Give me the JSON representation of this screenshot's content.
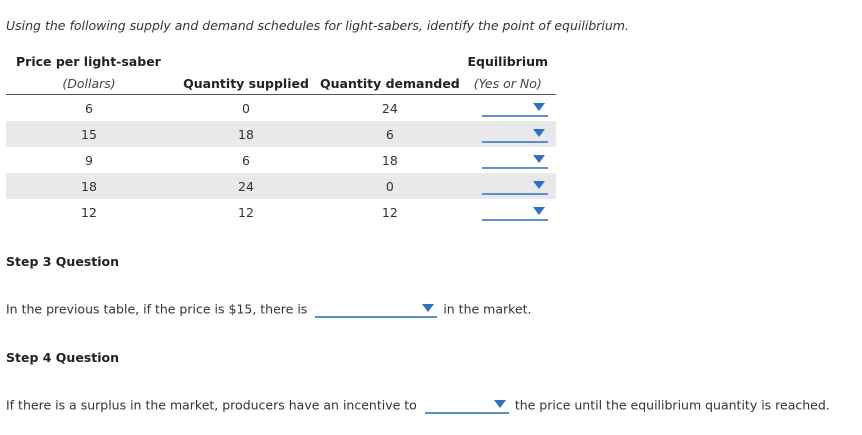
{
  "intro": "Using the following supply and demand schedules for light-sabers, identify the point of equilibrium.",
  "table": {
    "headers_top": {
      "price": "Price per light-saber",
      "equilibrium": "Equilibrium"
    },
    "headers_bottom": {
      "price_unit": "(Dollars)",
      "supplied": "Quantity supplied",
      "demanded": "Quantity demanded",
      "equilibrium_options": "(Yes or No)"
    },
    "rows": [
      {
        "price": "6",
        "supplied": "0",
        "demanded": "24",
        "equilibrium": ""
      },
      {
        "price": "15",
        "supplied": "18",
        "demanded": "6",
        "equilibrium": ""
      },
      {
        "price": "9",
        "supplied": "6",
        "demanded": "18",
        "equilibrium": ""
      },
      {
        "price": "18",
        "supplied": "24",
        "demanded": "0",
        "equilibrium": ""
      },
      {
        "price": "12",
        "supplied": "12",
        "demanded": "12",
        "equilibrium": ""
      }
    ]
  },
  "step3": {
    "title": "Step 3 Question",
    "before": "In the previous table, if the price is $15, there is",
    "selected": "",
    "after": "in the market."
  },
  "step4": {
    "title": "Step 4 Question",
    "before": "If there is a surplus in the market, producers have an incentive to",
    "selected": "",
    "after": "the price until the equilibrium quantity is reached."
  },
  "colors": {
    "dropdown_line": "#5a8fd0",
    "dropdown_arrow": "#2f6fbf",
    "row_shade": "#e9e9e9"
  }
}
